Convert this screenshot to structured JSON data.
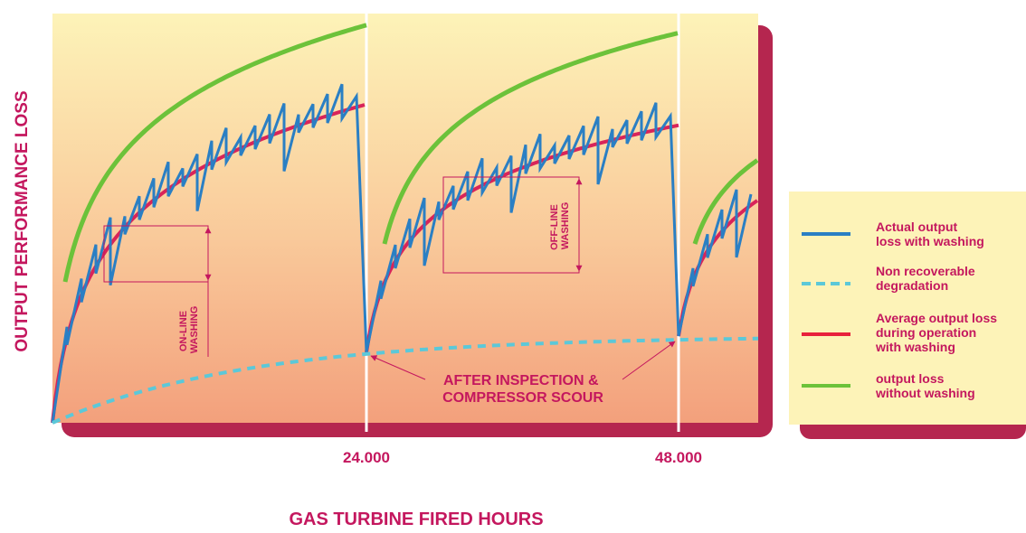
{
  "y_axis_label": "OUTPUT PERFORMANCE LOSS",
  "x_axis_label": "GAS TURBINE FIRED HOURS",
  "x_ticks": [
    "24.000",
    "48.000"
  ],
  "annotations": {
    "online_washing": [
      "ON-LINE",
      "WASHING"
    ],
    "offline_washing": [
      "OFF-LINE",
      "WASHING"
    ],
    "inspection": [
      "AFTER INSPECTION &",
      "COMPRESSOR SCOUR"
    ]
  },
  "legend": [
    {
      "lines": [
        "Actual output",
        "loss with washing"
      ]
    },
    {
      "lines": [
        "Non recoverable",
        "degradation"
      ]
    },
    {
      "lines": [
        "Average output loss",
        "during operation",
        "with washing"
      ]
    },
    {
      "lines": [
        "output loss",
        "without washing"
      ]
    }
  ]
}
